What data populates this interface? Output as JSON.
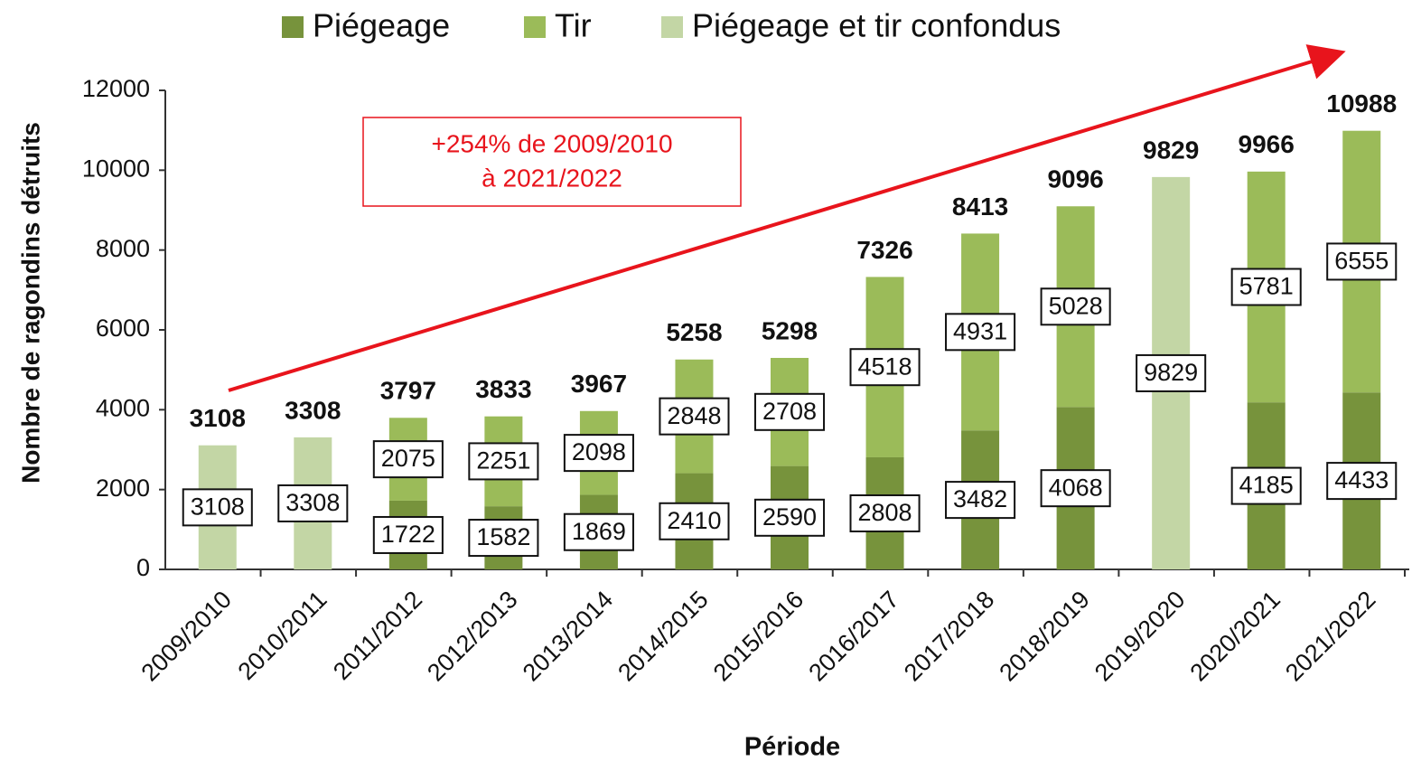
{
  "chart_data": {
    "type": "stacked-bar",
    "y_label": "Nombre de ragondins détruits",
    "x_label": "Période",
    "annotation": [
      "+254% de 2009/2010",
      "à 2021/2022"
    ],
    "annotation_color": "#e8141c",
    "categories": [
      "2009/2010",
      "2010/2011",
      "2011/2012",
      "2012/2013",
      "2013/2014",
      "2014/2015",
      "2015/2016",
      "2016/2017",
      "2017/2018",
      "2018/2019",
      "2019/2020",
      "2020/2021",
      "2021/2022"
    ],
    "series": [
      {
        "name": "Piégeage",
        "color": "#77933c",
        "values": [
          null,
          null,
          1722,
          1582,
          1869,
          2410,
          2590,
          2808,
          3482,
          4068,
          null,
          4185,
          4433
        ]
      },
      {
        "name": "Tir",
        "color": "#9bbb59",
        "values": [
          null,
          null,
          2075,
          2251,
          2098,
          2848,
          2708,
          4518,
          4931,
          5028,
          null,
          5781,
          6555
        ]
      },
      {
        "name": "Piégeage et tir confondus",
        "color": "#c3d6a5",
        "values": [
          3108,
          3308,
          null,
          null,
          null,
          null,
          null,
          null,
          null,
          null,
          9829,
          null,
          null
        ]
      }
    ],
    "totals": [
      3108,
      3308,
      3797,
      3833,
      3967,
      5258,
      5298,
      7326,
      8413,
      9096,
      9829,
      9966,
      10988
    ],
    "ylim": [
      0,
      12000
    ],
    "yticks": [
      0,
      2000,
      4000,
      6000,
      8000,
      10000,
      12000
    ]
  }
}
